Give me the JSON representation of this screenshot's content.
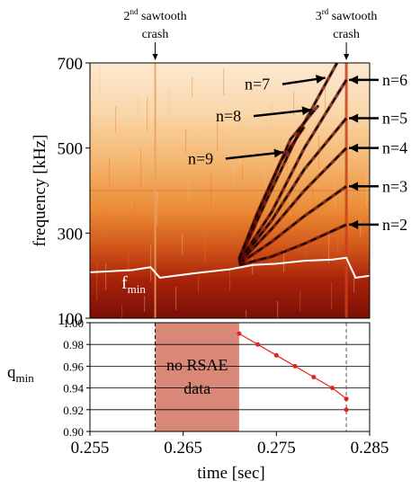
{
  "chart_data": [
    {
      "type": "heatmap",
      "title": "",
      "xlabel": "",
      "ylabel": "frequency [kHz]",
      "xlim": [
        0.255,
        0.285
      ],
      "ylim": [
        100,
        700
      ],
      "yticks": [
        {
          "value": 100,
          "label": "100"
        },
        {
          "value": 300,
          "label": "300"
        },
        {
          "value": 500,
          "label": "500"
        },
        {
          "value": 700,
          "label": "700"
        }
      ],
      "colors": {
        "low": "#fbe8d0",
        "mid": "#f0923c",
        "high": "#7a0e05",
        "fmin_line": "#ffffff"
      },
      "crashes": [
        {
          "time": 0.262,
          "label_sup": "nd",
          "label_pre": "2",
          "label_post": " sawtooth",
          "label_line2": "crash"
        },
        {
          "time": 0.2825,
          "label_sup": "rd",
          "label_pre": "3",
          "label_post": " sawtooth",
          "label_line2": "crash"
        }
      ],
      "fmin_label": {
        "text": "f",
        "sub": "min"
      },
      "fmin_line": {
        "x": [
          0.255,
          0.257,
          0.2595,
          0.2615,
          0.2625,
          0.266,
          0.27,
          0.2725,
          0.275,
          0.278,
          0.281,
          0.2825,
          0.2835,
          0.285
        ],
        "y": [
          208,
          210,
          213,
          220,
          195,
          205,
          215,
          225,
          228,
          235,
          238,
          242,
          195,
          200
        ]
      },
      "modes": [
        {
          "n": 2,
          "label": "n=2",
          "x": [
            0.271,
            0.2745,
            0.278,
            0.2825
          ],
          "y": [
            225,
            245,
            275,
            320
          ]
        },
        {
          "n": 3,
          "label": "n=3",
          "x": [
            0.271,
            0.2745,
            0.278,
            0.2825
          ],
          "y": [
            228,
            280,
            340,
            410
          ]
        },
        {
          "n": 4,
          "label": "n=4",
          "x": [
            0.271,
            0.2745,
            0.278,
            0.2825
          ],
          "y": [
            230,
            310,
            400,
            500
          ]
        },
        {
          "n": 5,
          "label": "n=5",
          "x": [
            0.271,
            0.2745,
            0.278,
            0.2825
          ],
          "y": [
            232,
            330,
            450,
            570
          ]
        },
        {
          "n": 6,
          "label": "n=6",
          "x": [
            0.271,
            0.2745,
            0.278,
            0.2825
          ],
          "y": [
            234,
            350,
            500,
            660
          ]
        },
        {
          "n": 7,
          "label": "n=7",
          "x": [
            0.271,
            0.274,
            0.2775,
            0.2815
          ],
          "y": [
            236,
            380,
            540,
            700
          ]
        },
        {
          "n": 8,
          "label": "n=8",
          "x": [
            0.271,
            0.2735,
            0.2765,
            0.2795
          ],
          "y": [
            238,
            370,
            520,
            600
          ]
        },
        {
          "n": 9,
          "label": "n=9",
          "x": [
            0.271,
            0.273,
            0.2755,
            0.278
          ],
          "y": [
            240,
            350,
            470,
            550
          ]
        }
      ]
    },
    {
      "type": "scatter",
      "title": "",
      "xlabel": "time [sec]",
      "ylabel": "q",
      "ylabel_sub": "min",
      "xlim": [
        0.255,
        0.285
      ],
      "ylim": [
        0.9,
        1.0
      ],
      "xticks": [
        {
          "value": 0.255,
          "label": "0.255"
        },
        {
          "value": 0.265,
          "label": "0.265"
        },
        {
          "value": 0.275,
          "label": "0.275"
        },
        {
          "value": 0.285,
          "label": "0.285"
        }
      ],
      "yticks": [
        {
          "value": 1.0,
          "label": "1.00"
        },
        {
          "value": 0.98,
          "label": "0.98"
        },
        {
          "value": 0.96,
          "label": "0.96"
        },
        {
          "value": 0.94,
          "label": "0.94"
        },
        {
          "value": 0.92,
          "label": "0.92"
        },
        {
          "value": 0.9,
          "label": "0.90"
        }
      ],
      "grid": true,
      "shaded_region": {
        "x0": 0.262,
        "x1": 0.271,
        "label_line1": "no RSAE",
        "label_line2": "data",
        "color": "#d98878"
      },
      "series": [
        {
          "color": "#e8201a",
          "x": [
            0.271,
            0.273,
            0.275,
            0.277,
            0.279,
            0.281,
            0.2825
          ],
          "y": [
            0.99,
            0.98,
            0.97,
            0.96,
            0.95,
            0.94,
            0.93
          ]
        }
      ],
      "extra_points": {
        "x": [
          0.2825
        ],
        "y": [
          0.92
        ]
      }
    }
  ]
}
